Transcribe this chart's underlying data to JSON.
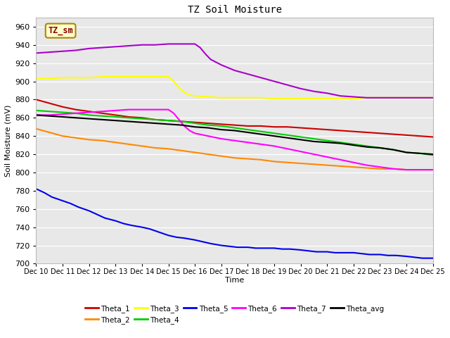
{
  "title": "TZ Soil Moisture",
  "xlabel": "Time",
  "ylabel": "Soil Moisture (mV)",
  "ylim": [
    700,
    970
  ],
  "xlim": [
    0,
    15
  ],
  "yticks": [
    700,
    720,
    740,
    760,
    780,
    800,
    820,
    840,
    860,
    880,
    900,
    920,
    940,
    960
  ],
  "background_color": "#e8e8e8",
  "legend_box": {
    "label": "TZ_sm",
    "facecolor": "#ffffcc",
    "edgecolor": "#aa8800"
  },
  "series_order": [
    "Theta_1",
    "Theta_2",
    "Theta_3",
    "Theta_4",
    "Theta_5",
    "Theta_6",
    "Theta_7",
    "Theta_avg"
  ],
  "series": {
    "Theta_1": {
      "color": "#cc0000",
      "x": [
        0,
        0.5,
        1,
        1.5,
        2,
        2.5,
        3,
        3.5,
        4,
        4.5,
        5,
        5.5,
        6,
        6.5,
        7,
        7.5,
        8,
        8.5,
        9,
        9.5,
        10,
        10.5,
        11,
        11.5,
        12,
        12.5,
        13,
        13.5,
        14,
        14.5,
        15
      ],
      "y": [
        880,
        876,
        872,
        869,
        867,
        865,
        863,
        861,
        860,
        858,
        857,
        856,
        855,
        854,
        853,
        852,
        851,
        851,
        850,
        850,
        849,
        848,
        847,
        846,
        845,
        844,
        843,
        842,
        841,
        840,
        839
      ]
    },
    "Theta_2": {
      "color": "#ff8800",
      "x": [
        0,
        0.5,
        1,
        1.5,
        2,
        2.5,
        3,
        3.5,
        4,
        4.5,
        5,
        5.5,
        6,
        6.5,
        7,
        7.5,
        8,
        8.5,
        9,
        9.5,
        10,
        10.5,
        11,
        11.5,
        12,
        12.5,
        13,
        13.5,
        14,
        14.5,
        15
      ],
      "y": [
        848,
        844,
        840,
        838,
        836,
        835,
        833,
        831,
        829,
        827,
        826,
        824,
        822,
        820,
        818,
        816,
        815,
        814,
        812,
        811,
        810,
        809,
        808,
        807,
        806,
        805,
        804,
        804,
        803,
        803,
        803
      ]
    },
    "Theta_3": {
      "color": "#ffff00",
      "x": [
        0,
        0.5,
        1,
        1.5,
        2,
        2.5,
        3,
        3.5,
        4,
        4.5,
        5,
        5.2,
        5.4,
        5.6,
        5.8,
        6,
        6.5,
        7,
        7.5,
        8,
        8.5,
        9,
        9.5,
        10,
        10.5,
        11,
        11.5,
        12,
        12.5,
        13,
        13.5,
        14,
        14.5,
        15
      ],
      "y": [
        903,
        903,
        904,
        904,
        904,
        905,
        905,
        905,
        905,
        905,
        905,
        900,
        893,
        888,
        885,
        884,
        883,
        882,
        882,
        882,
        882,
        881,
        881,
        881,
        881,
        881,
        881,
        881,
        882,
        882,
        882,
        882,
        882,
        882
      ]
    },
    "Theta_4": {
      "color": "#00cc00",
      "x": [
        0,
        0.5,
        1,
        1.5,
        2,
        2.5,
        3,
        3.5,
        4,
        4.5,
        5,
        5.5,
        6,
        6.5,
        7,
        7.5,
        8,
        8.5,
        9,
        9.5,
        10,
        10.5,
        11,
        11.5,
        12,
        12.5,
        13,
        13.5,
        14,
        14.5,
        15
      ],
      "y": [
        868,
        867,
        866,
        865,
        863,
        862,
        861,
        860,
        859,
        858,
        857,
        856,
        854,
        852,
        851,
        849,
        847,
        845,
        843,
        841,
        839,
        837,
        835,
        833,
        831,
        829,
        827,
        825,
        822,
        821,
        819
      ]
    },
    "Theta_5": {
      "color": "#0000ee",
      "x": [
        0,
        0.3,
        0.6,
        1,
        1.3,
        1.6,
        2,
        2.3,
        2.6,
        3,
        3.3,
        3.6,
        4,
        4.3,
        4.6,
        5,
        5.3,
        5.6,
        6,
        6.3,
        6.6,
        7,
        7.3,
        7.6,
        8,
        8.3,
        8.6,
        9,
        9.3,
        9.6,
        10,
        10.3,
        10.6,
        11,
        11.3,
        11.6,
        12,
        12.3,
        12.6,
        13,
        13.3,
        13.6,
        14,
        14.3,
        14.6,
        15
      ],
      "y": [
        782,
        778,
        773,
        769,
        766,
        762,
        758,
        754,
        750,
        747,
        744,
        742,
        740,
        738,
        735,
        731,
        729,
        728,
        726,
        724,
        722,
        720,
        719,
        718,
        718,
        717,
        717,
        717,
        716,
        716,
        715,
        714,
        713,
        713,
        712,
        712,
        712,
        711,
        710,
        710,
        709,
        709,
        708,
        707,
        706,
        706
      ]
    },
    "Theta_6": {
      "color": "#ff00ff",
      "x": [
        0,
        0.5,
        1,
        1.5,
        2,
        2.5,
        3,
        3.5,
        4,
        4.5,
        5,
        5.2,
        5.4,
        5.6,
        5.8,
        6,
        6.5,
        7,
        7.5,
        8,
        8.5,
        9,
        9.5,
        10,
        10.5,
        11,
        11.5,
        12,
        12.5,
        13,
        13.5,
        14,
        14.5,
        15
      ],
      "y": [
        863,
        863,
        864,
        865,
        866,
        867,
        868,
        869,
        869,
        869,
        869,
        865,
        858,
        851,
        846,
        843,
        840,
        837,
        835,
        833,
        831,
        829,
        826,
        823,
        820,
        817,
        814,
        811,
        808,
        806,
        804,
        803,
        803,
        803
      ]
    },
    "Theta_7": {
      "color": "#aa00cc",
      "x": [
        0,
        0.5,
        1,
        1.5,
        2,
        2.5,
        3,
        3.5,
        4,
        4.5,
        5,
        5.5,
        6,
        6.2,
        6.4,
        6.6,
        6.8,
        7,
        7.5,
        8,
        8.5,
        9,
        9.5,
        10,
        10.5,
        11,
        11.5,
        12,
        12.5,
        13,
        13.5,
        14,
        14.5,
        15
      ],
      "y": [
        931,
        932,
        933,
        934,
        936,
        937,
        938,
        939,
        940,
        940,
        941,
        941,
        941,
        937,
        930,
        924,
        921,
        918,
        912,
        908,
        904,
        900,
        896,
        892,
        889,
        887,
        884,
        883,
        882,
        882,
        882,
        882,
        882,
        882
      ]
    },
    "Theta_avg": {
      "color": "#000000",
      "x": [
        0,
        0.5,
        1,
        1.5,
        2,
        2.5,
        3,
        3.5,
        4,
        4.5,
        5,
        5.5,
        6,
        6.5,
        7,
        7.5,
        8,
        8.5,
        9,
        9.5,
        10,
        10.5,
        11,
        11.5,
        12,
        12.5,
        13,
        13.5,
        14,
        14.5,
        15
      ],
      "y": [
        863,
        862,
        861,
        860,
        859,
        858,
        857,
        856,
        855,
        854,
        853,
        852,
        850,
        849,
        847,
        846,
        844,
        842,
        840,
        838,
        836,
        834,
        833,
        832,
        830,
        828,
        827,
        825,
        822,
        821,
        820
      ]
    }
  },
  "xtick_labels": [
    "Dec 10",
    "Dec 11",
    "Dec 12",
    "Dec 13",
    "Dec 14",
    "Dec 15",
    "Dec 16",
    "Dec 17",
    "Dec 18",
    "Dec 19",
    "Dec 20",
    "Dec 21",
    "Dec 22",
    "Dec 23",
    "Dec 24",
    "Dec 25"
  ],
  "legend_entries": [
    {
      "color": "#cc0000",
      "label": "Theta_1"
    },
    {
      "color": "#ff8800",
      "label": "Theta_2"
    },
    {
      "color": "#ffff00",
      "label": "Theta_3"
    },
    {
      "color": "#00cc00",
      "label": "Theta_4"
    },
    {
      "color": "#0000ee",
      "label": "Theta_5"
    },
    {
      "color": "#ff00ff",
      "label": "Theta_6"
    },
    {
      "color": "#aa00cc",
      "label": "Theta_7"
    },
    {
      "color": "#000000",
      "label": "Theta_avg"
    }
  ]
}
